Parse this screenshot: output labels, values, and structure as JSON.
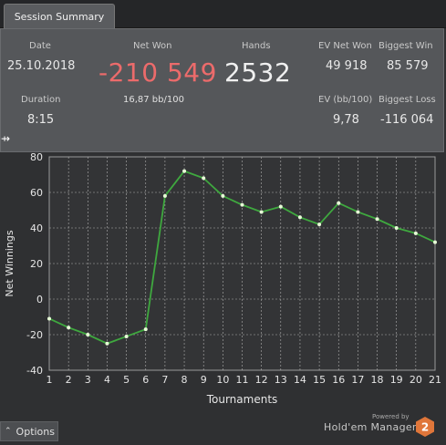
{
  "tab": {
    "label": "Session Summary"
  },
  "summary": {
    "date_label": "Date",
    "date_value": "25.10.2018",
    "net_won_label": "Net Won",
    "net_won_value": "-210 549",
    "bb100": "16,87 bb/100",
    "hands_label": "Hands",
    "hands_value": "2532",
    "ev_net_won_label": "EV Net Won",
    "ev_net_won_value": "49 918",
    "biggest_win_label": "Biggest Win",
    "biggest_win_value": "85 579",
    "duration_label": "Duration",
    "duration_value": "8:15",
    "ev_bb100_label": "EV (bb/100)",
    "ev_bb100_value": "9,78",
    "biggest_loss_label": "Biggest Loss",
    "biggest_loss_value": "-116 064"
  },
  "chart_data": {
    "type": "line",
    "xlabel": "Tournaments",
    "ylabel": "Net Winnings",
    "x": [
      1,
      2,
      3,
      4,
      5,
      6,
      7,
      8,
      9,
      10,
      11,
      12,
      13,
      14,
      15,
      16,
      17,
      18,
      19,
      20,
      21
    ],
    "series": [
      {
        "values": [
          -11,
          -16,
          -20,
          -25,
          -21,
          -17,
          58,
          72,
          68,
          58,
          53,
          49,
          52,
          46,
          42,
          54,
          49,
          45,
          40,
          37,
          32
        ]
      }
    ],
    "ylim": [
      -40,
      80
    ],
    "yticks": [
      -40,
      -20,
      0,
      20,
      40,
      60,
      80
    ],
    "grid": true,
    "colors": {
      "line": "#3fa83f",
      "point": "#e8ffd8",
      "grid": "#b0b0b0"
    }
  },
  "footer": {
    "options_label": "Options",
    "powered_by": "Powered by",
    "brand": "Hold'em Manager",
    "logo_text": "2"
  }
}
